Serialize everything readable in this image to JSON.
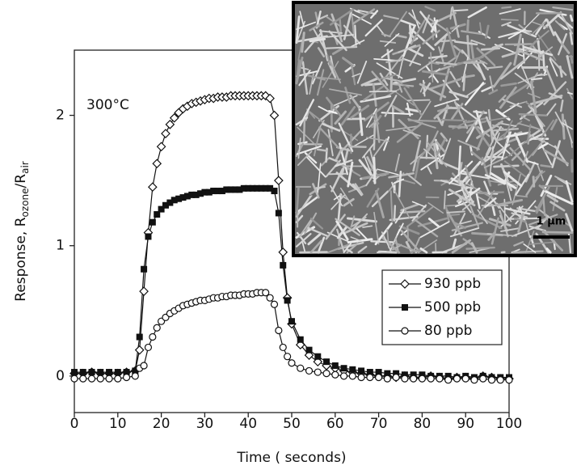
{
  "chart_data": {
    "type": "line",
    "annotation": "300°C",
    "xlabel": "Time  ( seconds)",
    "ylabel": [
      "Response, R",
      "ozone",
      "/R",
      "air"
    ],
    "xlim": [
      0,
      100
    ],
    "ylim": [
      -0.28,
      2.5
    ],
    "xticks": [
      0,
      10,
      20,
      30,
      40,
      50,
      60,
      70,
      80,
      90,
      100
    ],
    "yticks": [
      0,
      1,
      2
    ],
    "legend": "right",
    "inset": {
      "scale_label": "1 µm"
    },
    "x": [
      0,
      2,
      4,
      6,
      8,
      10,
      12,
      14,
      15,
      16,
      17,
      18,
      19,
      20,
      21,
      22,
      23,
      24,
      25,
      26,
      27,
      28,
      29,
      30,
      31,
      32,
      33,
      34,
      35,
      36,
      37,
      38,
      39,
      40,
      41,
      42,
      43,
      44,
      45,
      46,
      47,
      48,
      49,
      50,
      52,
      54,
      56,
      58,
      60,
      62,
      64,
      66,
      68,
      70,
      72,
      74,
      76,
      78,
      80,
      82,
      84,
      86,
      88,
      90,
      92,
      94,
      96,
      98,
      100
    ],
    "series": [
      {
        "name": "930 ppb",
        "color": "#111111",
        "marker": "diamond-open",
        "values": [
          0.02,
          0.02,
          0.03,
          0.02,
          0.02,
          0.02,
          0.03,
          0.04,
          0.2,
          0.65,
          1.1,
          1.45,
          1.63,
          1.76,
          1.86,
          1.93,
          1.98,
          2.02,
          2.05,
          2.07,
          2.09,
          2.1,
          2.11,
          2.12,
          2.13,
          2.13,
          2.14,
          2.14,
          2.14,
          2.15,
          2.15,
          2.15,
          2.15,
          2.15,
          2.15,
          2.15,
          2.15,
          2.15,
          2.13,
          2.0,
          1.5,
          0.95,
          0.6,
          0.4,
          0.24,
          0.16,
          0.11,
          0.08,
          0.06,
          0.04,
          0.03,
          0.02,
          0.01,
          0.0,
          0.0,
          -0.01,
          0.0,
          -0.01,
          -0.01,
          0.0,
          -0.01,
          -0.02,
          -0.01,
          -0.01,
          -0.02,
          0.0,
          -0.01,
          -0.02,
          -0.02
        ]
      },
      {
        "name": "500 ppb",
        "color": "#111111",
        "marker": "square-filled",
        "values": [
          0.03,
          0.03,
          0.03,
          0.03,
          0.03,
          0.03,
          0.03,
          0.04,
          0.3,
          0.82,
          1.07,
          1.18,
          1.24,
          1.28,
          1.31,
          1.33,
          1.35,
          1.36,
          1.37,
          1.38,
          1.39,
          1.39,
          1.4,
          1.41,
          1.41,
          1.42,
          1.42,
          1.42,
          1.43,
          1.43,
          1.43,
          1.43,
          1.44,
          1.44,
          1.44,
          1.44,
          1.44,
          1.44,
          1.44,
          1.42,
          1.25,
          0.85,
          0.58,
          0.42,
          0.28,
          0.2,
          0.15,
          0.11,
          0.08,
          0.06,
          0.05,
          0.04,
          0.03,
          0.03,
          0.02,
          0.02,
          0.01,
          0.01,
          0.01,
          0.0,
          0.0,
          0.0,
          -0.01,
          0.0,
          -0.01,
          0.0,
          -0.01,
          -0.01,
          -0.01
        ]
      },
      {
        "name": "80 ppb",
        "color": "#111111",
        "marker": "circle-open",
        "values": [
          -0.02,
          -0.02,
          -0.02,
          -0.02,
          -0.02,
          -0.02,
          -0.01,
          0.0,
          0.06,
          0.08,
          0.22,
          0.3,
          0.37,
          0.42,
          0.45,
          0.48,
          0.5,
          0.52,
          0.54,
          0.55,
          0.56,
          0.57,
          0.58,
          0.58,
          0.59,
          0.6,
          0.6,
          0.61,
          0.61,
          0.62,
          0.62,
          0.62,
          0.63,
          0.63,
          0.63,
          0.64,
          0.64,
          0.64,
          0.6,
          0.55,
          0.35,
          0.22,
          0.15,
          0.1,
          0.06,
          0.04,
          0.03,
          0.02,
          0.01,
          0.0,
          0.0,
          -0.01,
          -0.01,
          -0.01,
          -0.02,
          -0.01,
          -0.02,
          -0.02,
          -0.02,
          -0.02,
          -0.02,
          -0.03,
          -0.02,
          -0.02,
          -0.03,
          -0.02,
          -0.03,
          -0.03,
          -0.03
        ]
      }
    ]
  }
}
